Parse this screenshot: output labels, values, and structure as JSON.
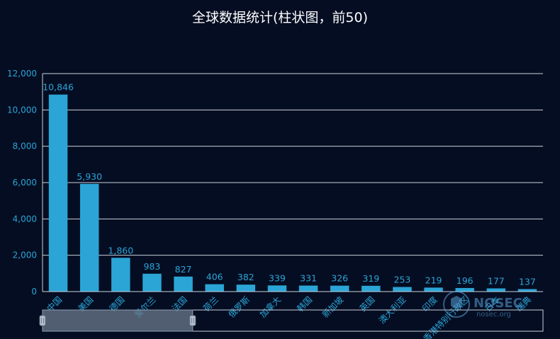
{
  "chart_data": {
    "type": "bar",
    "title": "全球数据统计(柱状图，前50)",
    "categories": [
      "中国",
      "美国",
      "德国",
      "爱尔兰",
      "法国",
      "荷兰",
      "俄罗斯",
      "加拿大",
      "韩国",
      "新加坡",
      "英国",
      "澳大利亚",
      "印度",
      "香港特别行政区",
      "日本",
      "瑞典"
    ],
    "values": [
      10846,
      5930,
      1860,
      983,
      827,
      406,
      382,
      339,
      331,
      326,
      319,
      253,
      219,
      196,
      177,
      137
    ],
    "value_labels": [
      "10,846",
      "5,930",
      "1,860",
      "983",
      "827",
      "406",
      "382",
      "339",
      "331",
      "326",
      "319",
      "253",
      "219",
      "196",
      "177",
      "137"
    ],
    "y_ticks": [
      "0",
      "2,000",
      "4,000",
      "6,000",
      "8,000",
      "10,000",
      "12,000"
    ],
    "ylim": [
      0,
      12000
    ],
    "grid": true,
    "bar_color": "#2aa5d6",
    "slider_range": [
      0,
      0.3
    ]
  },
  "watermark": {
    "logo_text": "NOSEC",
    "site_text": "nosec.org",
    "icon": "shield-logo-icon"
  }
}
